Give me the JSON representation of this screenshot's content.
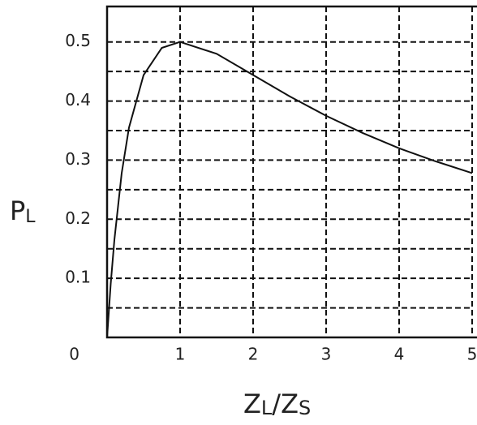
{
  "chart_data": {
    "type": "line",
    "ylabel": [
      "P",
      "L"
    ],
    "xlabel": [
      "Z",
      "L",
      "/Z",
      "S"
    ],
    "x": [
      0,
      0.05,
      0.1,
      0.2,
      0.3,
      0.5,
      0.75,
      1,
      1.5,
      2,
      2.5,
      3,
      3.5,
      4,
      4.5,
      5
    ],
    "series": [
      {
        "color": "#111111",
        "values": [
          0,
          0.091,
          0.165,
          0.278,
          0.355,
          0.444,
          0.49,
          0.5,
          0.48,
          0.444,
          0.408,
          0.375,
          0.346,
          0.32,
          0.298,
          0.278
        ]
      }
    ],
    "xlim": [
      0,
      5
    ],
    "ylim": [
      0,
      0.56
    ],
    "xticks": [
      1,
      2,
      3,
      4,
      5
    ],
    "yticks": [
      0,
      0.1,
      0.2,
      0.3,
      0.4,
      0.5
    ],
    "minor_yticks": [
      0.05,
      0.15,
      0.25,
      0.35,
      0.45
    ],
    "grid": true
  }
}
